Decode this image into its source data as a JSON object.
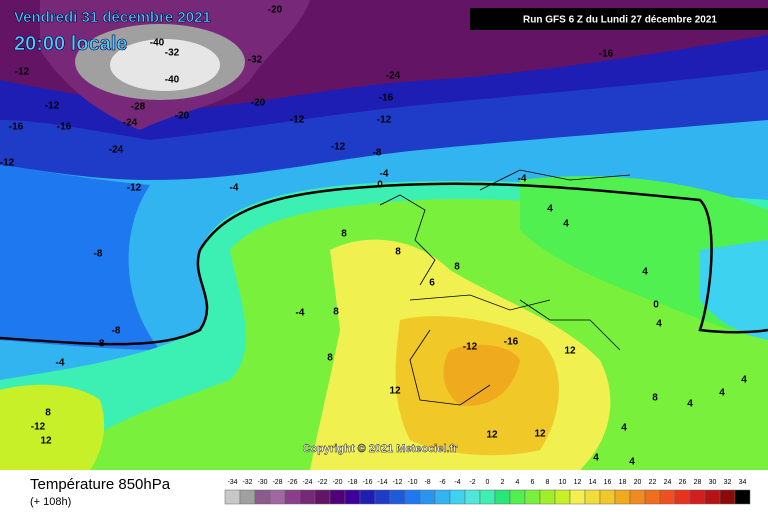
{
  "header": {
    "date": "Vendredi 31 décembre 2021",
    "time": "20:00 locale",
    "run": "Run GFS 6 Z du Lundi 27 décembre 2021"
  },
  "copyright": "Copyright © 2021 Meteociel.fr",
  "footer": {
    "title": "Température 850hPa",
    "subtitle": "(+ 108h)"
  },
  "legend": {
    "ticks": [
      -34,
      -32,
      -30,
      -28,
      -26,
      -24,
      -22,
      -20,
      -18,
      -16,
      -14,
      -12,
      -10,
      -8,
      -6,
      -4,
      -2,
      0,
      2,
      4,
      6,
      8,
      10,
      12,
      14,
      16,
      18,
      20,
      22,
      24,
      26,
      28,
      30,
      32,
      34
    ],
    "colors": [
      "#c8c8c8",
      "#a0a0a0",
      "#8c5a8c",
      "#a068a0",
      "#8c3c8c",
      "#782878",
      "#641464",
      "#50007a",
      "#3c0096",
      "#1e1eb4",
      "#1e3cc8",
      "#1e5adc",
      "#1e78f0",
      "#2896f0",
      "#32b4f0",
      "#3cd2f0",
      "#50e6dc",
      "#3cf0b4",
      "#28e678",
      "#50f050",
      "#78f03c",
      "#a0f028",
      "#c8f028",
      "#f0f050",
      "#f0dc3c",
      "#f0c828",
      "#f0aa1e",
      "#f08c1e",
      "#f06e1e",
      "#f0501e",
      "#e6321e",
      "#d21e1e",
      "#b41414",
      "#8c0a0a",
      "#000000"
    ]
  },
  "contour_labels": [
    -20,
    -40,
    -32,
    -40,
    -32,
    -12,
    -24,
    -16,
    -20,
    -16,
    -12,
    -28,
    -20,
    -16,
    -24,
    -12,
    -12,
    -16,
    -24,
    -8,
    -12,
    -12,
    -4,
    0,
    -4,
    -12,
    -4,
    4,
    4,
    8,
    8,
    8,
    -8,
    6,
    4,
    0,
    4,
    -4,
    8,
    -8,
    -8,
    -4,
    8,
    -12,
    -16,
    12,
    12,
    4,
    4,
    8,
    4,
    8,
    -12,
    12,
    12,
    12,
    4,
    4,
    4
  ]
}
